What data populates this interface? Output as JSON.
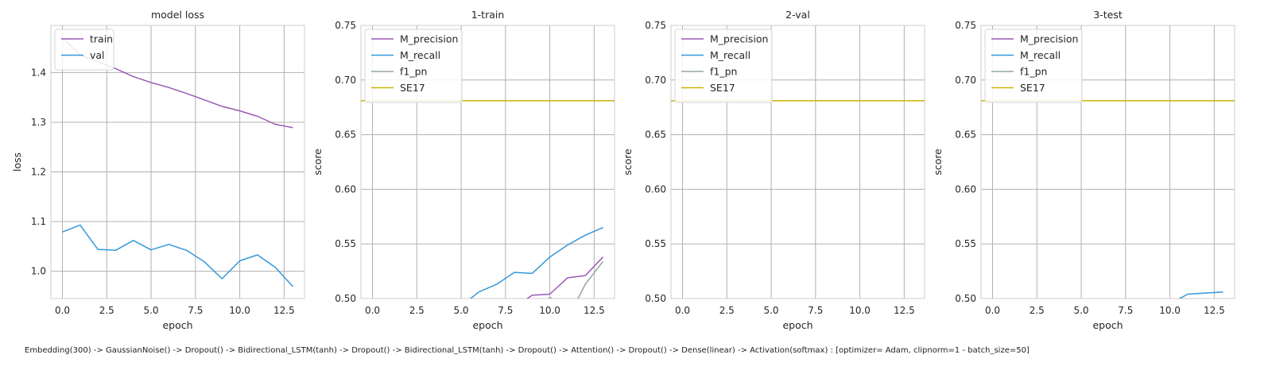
{
  "caption": "Embedding(300) -> GaussianNoise() -> Dropout() -> Bidirectional_LSTM(tanh) -> Dropout() -> Bidirectional_LSTM(tanh) -> Dropout() -> Attention() -> Dropout() -> Dense(linear) -> Activation(softmax) : [optimizer= Adam, clipnorm=1 - batch_size=50]",
  "colors": {
    "purple": "#9b59b6",
    "blue": "#3498db",
    "gray": "#95a5a6",
    "yellow": "#c8b400",
    "grid": "#b0b0b0"
  },
  "chart_data": [
    {
      "type": "line",
      "title": "model loss",
      "xlabel": "epoch",
      "ylabel": "loss",
      "xlim": [
        -0.65,
        13.65
      ],
      "ylim": [
        0.945,
        1.495
      ],
      "xticks": [
        0.0,
        2.5,
        5.0,
        7.5,
        10.0,
        12.5
      ],
      "xtick_labels": [
        "0.0",
        "2.5",
        "5.0",
        "7.5",
        "10.0",
        "12.5"
      ],
      "yticks": [
        1.0,
        1.1,
        1.2,
        1.3,
        1.4
      ],
      "ytick_labels": [
        "1.0",
        "1.1",
        "1.2",
        "1.3",
        "1.4"
      ],
      "grid": true,
      "legend": "upper-left",
      "series": [
        {
          "name": "train",
          "color": "#9b59b6",
          "x": [
            0,
            1,
            2,
            3,
            4,
            5,
            6,
            7,
            8,
            9,
            10,
            11,
            12,
            13
          ],
          "y": [
            1.47,
            1.435,
            1.422,
            1.408,
            1.392,
            1.38,
            1.37,
            1.358,
            1.345,
            1.332,
            1.323,
            1.312,
            1.296,
            1.289
          ]
        },
        {
          "name": "val",
          "color": "#3498db",
          "x": [
            0,
            1,
            2,
            3,
            4,
            5,
            6,
            7,
            8,
            9,
            10,
            11,
            12,
            13
          ],
          "y": [
            1.079,
            1.093,
            1.044,
            1.042,
            1.062,
            1.043,
            1.054,
            1.042,
            1.019,
            0.985,
            1.021,
            1.033,
            1.008,
            0.969
          ]
        }
      ]
    },
    {
      "type": "line",
      "title": "1-train",
      "xlabel": "epoch",
      "ylabel": "score",
      "xlim": [
        -0.65,
        13.65
      ],
      "ylim": [
        0.5,
        0.75
      ],
      "xticks": [
        0.0,
        2.5,
        5.0,
        7.5,
        10.0,
        12.5
      ],
      "xtick_labels": [
        "0.0",
        "2.5",
        "5.0",
        "7.5",
        "10.0",
        "12.5"
      ],
      "yticks": [
        0.5,
        0.55,
        0.6,
        0.65,
        0.7,
        0.75
      ],
      "ytick_labels": [
        "0.50",
        "0.55",
        "0.60",
        "0.65",
        "0.70",
        "0.75"
      ],
      "grid": true,
      "legend": "upper-left",
      "series": [
        {
          "name": "M_precision",
          "color": "#9b59b6",
          "x": [
            8,
            9,
            10,
            11,
            12,
            13
          ],
          "y": [
            0.492,
            0.503,
            0.504,
            0.519,
            0.521,
            0.538
          ]
        },
        {
          "name": "M_recall",
          "color": "#3498db",
          "x": [
            5,
            6,
            7,
            8,
            9,
            10,
            11,
            12,
            13
          ],
          "y": [
            0.493,
            0.506,
            0.513,
            0.524,
            0.523,
            0.538,
            0.549,
            0.558,
            0.565
          ]
        },
        {
          "name": "f1_pn",
          "color": "#95a5a6",
          "x": [
            9.8,
            10,
            10.5,
            11,
            11.5,
            12,
            13
          ],
          "y": [
            0.494,
            0.501,
            0.496,
            0.488,
            0.497,
            0.513,
            0.534
          ]
        },
        {
          "name": "SE17",
          "color": "#c8b400",
          "x": [
            -0.65,
            13.65
          ],
          "y": [
            0.681,
            0.681
          ]
        }
      ]
    },
    {
      "type": "line",
      "title": "2-val",
      "xlabel": "epoch",
      "ylabel": "score",
      "xlim": [
        -0.65,
        13.65
      ],
      "ylim": [
        0.5,
        0.75
      ],
      "xticks": [
        0.0,
        2.5,
        5.0,
        7.5,
        10.0,
        12.5
      ],
      "xtick_labels": [
        "0.0",
        "2.5",
        "5.0",
        "7.5",
        "10.0",
        "12.5"
      ],
      "yticks": [
        0.5,
        0.55,
        0.6,
        0.65,
        0.7,
        0.75
      ],
      "ytick_labels": [
        "0.50",
        "0.55",
        "0.60",
        "0.65",
        "0.70",
        "0.75"
      ],
      "grid": true,
      "legend": "upper-left",
      "series": [
        {
          "name": "M_precision",
          "color": "#9b59b6",
          "x": [],
          "y": []
        },
        {
          "name": "M_recall",
          "color": "#3498db",
          "x": [],
          "y": []
        },
        {
          "name": "f1_pn",
          "color": "#95a5a6",
          "x": [],
          "y": []
        },
        {
          "name": "SE17",
          "color": "#c8b400",
          "x": [
            -0.65,
            13.65
          ],
          "y": [
            0.681,
            0.681
          ]
        }
      ]
    },
    {
      "type": "line",
      "title": "3-test",
      "xlabel": "epoch",
      "ylabel": "score",
      "xlim": [
        -0.65,
        13.65
      ],
      "ylim": [
        0.5,
        0.75
      ],
      "xticks": [
        0.0,
        2.5,
        5.0,
        7.5,
        10.0,
        12.5
      ],
      "xtick_labels": [
        "0.0",
        "2.5",
        "5.0",
        "7.5",
        "10.0",
        "12.5"
      ],
      "yticks": [
        0.5,
        0.55,
        0.6,
        0.65,
        0.7,
        0.75
      ],
      "ytick_labels": [
        "0.50",
        "0.55",
        "0.60",
        "0.65",
        "0.70",
        "0.75"
      ],
      "grid": true,
      "legend": "upper-left",
      "series": [
        {
          "name": "M_precision",
          "color": "#9b59b6",
          "x": [],
          "y": []
        },
        {
          "name": "M_recall",
          "color": "#3498db",
          "x": [
            10,
            11,
            12,
            13
          ],
          "y": [
            0.495,
            0.504,
            0.505,
            0.506
          ]
        },
        {
          "name": "f1_pn",
          "color": "#95a5a6",
          "x": [],
          "y": []
        },
        {
          "name": "SE17",
          "color": "#c8b400",
          "x": [
            -0.65,
            13.65
          ],
          "y": [
            0.681,
            0.681
          ]
        }
      ]
    }
  ]
}
